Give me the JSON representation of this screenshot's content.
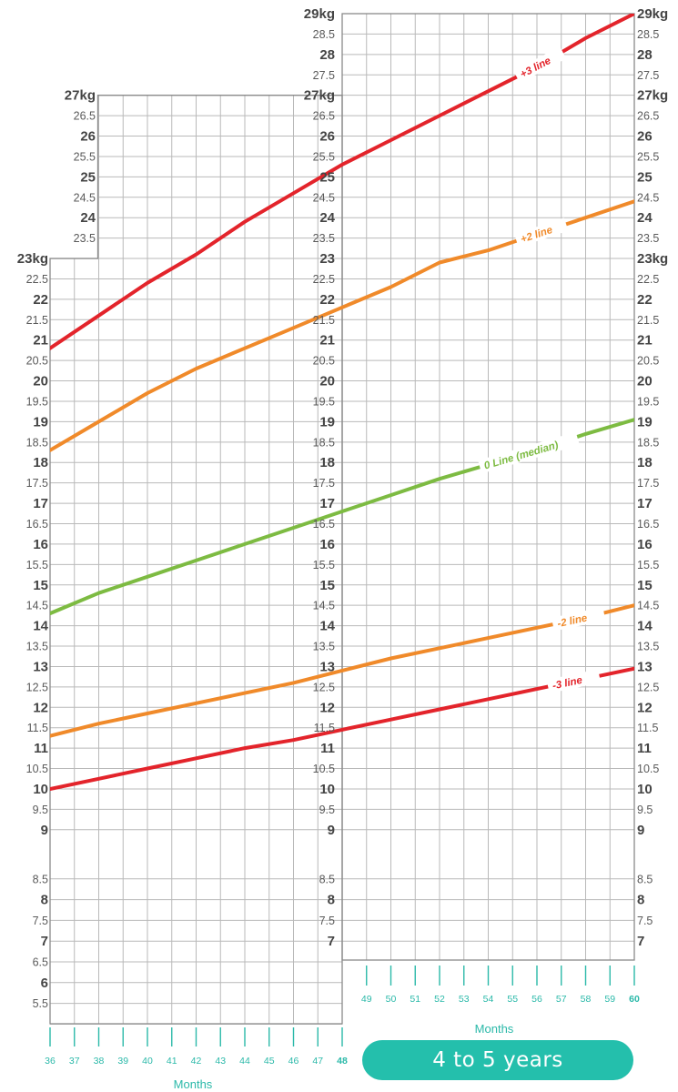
{
  "badge": {
    "label": "4 to 5 years"
  },
  "colors": {
    "red": "#e3242b",
    "orange": "#f08a2a",
    "green": "#7dbb42",
    "teal": "#2bb9a9",
    "pill": "#24bfac"
  },
  "chart_data": {
    "type": "line",
    "title": "",
    "xlabel": "Months",
    "ylabel": "",
    "unit": "kg",
    "grid": true,
    "panels": [
      {
        "x_range": [
          36,
          48
        ],
        "x_ticks": [
          36,
          37,
          38,
          39,
          40,
          41,
          42,
          43,
          44,
          45,
          46,
          47,
          48
        ],
        "ylim": [
          5,
          23
        ],
        "y_top_label": "23kg"
      },
      {
        "x_range": [
          36,
          48
        ],
        "ylim": [
          23,
          27
        ],
        "y_top_label": "27kg"
      },
      {
        "x_range": [
          48,
          60
        ],
        "x_ticks": [
          49,
          50,
          51,
          52,
          53,
          54,
          55,
          56,
          57,
          58,
          59,
          60
        ],
        "ylim": [
          6.5,
          29
        ],
        "y_top_label": "29kg"
      }
    ],
    "y_ticks": {
      "left_main": [
        "23kg",
        "22.5",
        "22",
        "21.5",
        "21",
        "20.5",
        "20",
        "19.5",
        "19",
        "18.5",
        "18",
        "17.5",
        "17",
        "16.5",
        "16",
        "15.5",
        "15",
        "14.5",
        "14",
        "13.5",
        "13",
        "12.5",
        "12",
        "11.5",
        "11",
        "10.5",
        "10",
        "9.5",
        "9",
        "8.5",
        "8",
        "7.5",
        "7",
        "6.5",
        "6",
        "5.5"
      ],
      "left_upper": [
        "27kg",
        "26.5",
        "26",
        "25.5",
        "25",
        "24.5",
        "24",
        "23.5"
      ],
      "middle": [
        "29kg",
        "28.5",
        "28",
        "27.5",
        "27kg",
        "26.5",
        "26",
        "25.5",
        "25",
        "24.5",
        "24",
        "23.5",
        "23",
        "22.5",
        "22",
        "21.5",
        "21",
        "20.5",
        "20",
        "19.5",
        "19",
        "18.5",
        "18",
        "17.5",
        "17",
        "16.5",
        "16",
        "15.5",
        "15",
        "14.5",
        "14",
        "13.5",
        "13",
        "12.5",
        "12",
        "11.5",
        "11",
        "10.5",
        "10",
        "9.5",
        "9",
        "8.5",
        "8",
        "7.5",
        "7"
      ],
      "right": [
        "29kg",
        "28.5",
        "28",
        "27.5",
        "27kg",
        "26.5",
        "26",
        "25.5",
        "25",
        "24.5",
        "24",
        "23.5",
        "23kg",
        "22.5",
        "22",
        "21.5",
        "21",
        "20.5",
        "20",
        "19.5",
        "19",
        "18.5",
        "18",
        "17.5",
        "17",
        "16.5",
        "16",
        "15.5",
        "15",
        "14.5",
        "14",
        "13.5",
        "13",
        "12.5",
        "12",
        "11.5",
        "11",
        "10.5",
        "10",
        "9.5",
        "9",
        "8.5",
        "8",
        "7.5",
        "7"
      ]
    },
    "series": [
      {
        "name": "+3 line",
        "color": "red",
        "x": [
          36,
          38,
          40,
          42,
          44,
          46,
          48,
          50,
          52,
          54,
          56,
          58,
          60
        ],
        "y": [
          20.8,
          21.6,
          22.4,
          23.1,
          23.9,
          24.6,
          25.3,
          25.9,
          26.5,
          27.1,
          27.7,
          28.4,
          29.0
        ]
      },
      {
        "name": "+2 line",
        "color": "orange",
        "x": [
          36,
          38,
          40,
          42,
          44,
          46,
          48,
          50,
          52,
          54,
          56,
          58,
          60
        ],
        "y": [
          18.3,
          19.0,
          19.7,
          20.3,
          20.8,
          21.3,
          21.8,
          22.3,
          22.9,
          23.2,
          23.6,
          24.0,
          24.4
        ]
      },
      {
        "name": "0 Line (median)",
        "color": "green",
        "x": [
          36,
          38,
          40,
          42,
          44,
          46,
          48,
          50,
          52,
          54,
          56,
          58,
          60
        ],
        "y": [
          14.3,
          14.8,
          15.2,
          15.6,
          16.0,
          16.4,
          16.8,
          17.2,
          17.6,
          17.95,
          18.3,
          18.7,
          19.05
        ]
      },
      {
        "name": "-2 line",
        "color": "orange",
        "x": [
          36,
          38,
          40,
          42,
          44,
          46,
          48,
          50,
          52,
          54,
          56,
          58,
          60
        ],
        "y": [
          11.3,
          11.6,
          11.85,
          12.1,
          12.35,
          12.6,
          12.9,
          13.2,
          13.45,
          13.7,
          13.95,
          14.2,
          14.5
        ]
      },
      {
        "name": "-3 line",
        "color": "red",
        "x": [
          36,
          38,
          40,
          42,
          44,
          46,
          48,
          50,
          52,
          54,
          56,
          58,
          60
        ],
        "y": [
          10.0,
          10.25,
          10.5,
          10.75,
          11.0,
          11.2,
          11.45,
          11.7,
          11.95,
          12.2,
          12.45,
          12.7,
          12.95
        ]
      }
    ]
  }
}
